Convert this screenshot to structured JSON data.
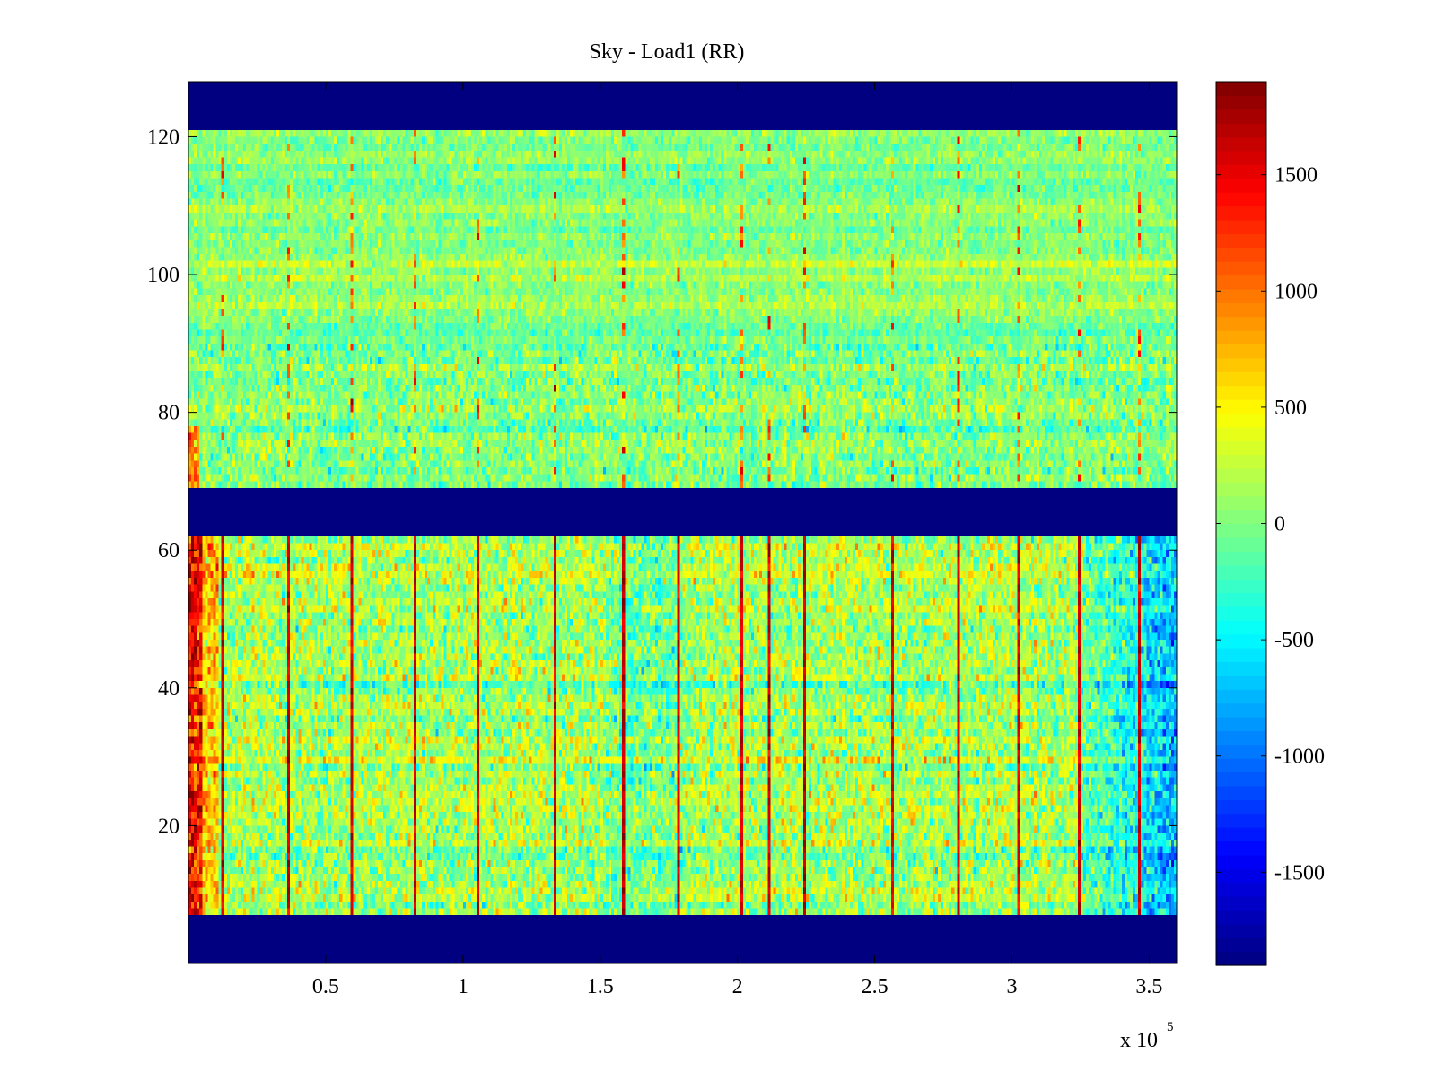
{
  "chart_data": {
    "type": "heatmap",
    "title": "Sky - Load1 (RR)",
    "xlabel": "",
    "ylabel": "",
    "x_range": [
      0,
      360000
    ],
    "y_range": [
      0,
      128
    ],
    "x_ticks": [
      50000,
      100000,
      150000,
      200000,
      250000,
      300000,
      350000
    ],
    "x_tick_labels": [
      "0.5",
      "1",
      "1.5",
      "2",
      "2.5",
      "3",
      "3.5"
    ],
    "x_exponent": {
      "base": "x 10",
      "power": "5"
    },
    "y_ticks": [
      20,
      40,
      60,
      80,
      100,
      120
    ],
    "y_tick_labels": [
      "20",
      "40",
      "60",
      "80",
      "100",
      "120"
    ],
    "colorbar": {
      "colormap": "jet",
      "range": [
        -1900,
        1900
      ],
      "ticks": [
        1500,
        1000,
        500,
        0,
        -500,
        -1000,
        -1500
      ],
      "tick_labels": [
        "1500",
        "1000",
        "500",
        "0",
        "-500",
        "-1000",
        "-1500"
      ]
    },
    "grid": false,
    "masked_rows": [
      [
        0,
        7
      ],
      [
        62,
        69
      ],
      [
        121,
        128
      ]
    ],
    "masked_value": -1900,
    "bands": [
      {
        "rows": [
          7,
          62
        ],
        "typical_value": 150,
        "notes": "strong positive values near x=0; negative region near x=330000-360000"
      },
      {
        "rows": [
          69,
          121
        ],
        "typical_value": 0
      }
    ],
    "vertical_stripes_x": [
      12000,
      36000,
      59000,
      82000,
      105000,
      133000,
      158000,
      178000,
      201000,
      211000,
      224000,
      256000,
      280000,
      302000,
      324000,
      346000
    ]
  }
}
